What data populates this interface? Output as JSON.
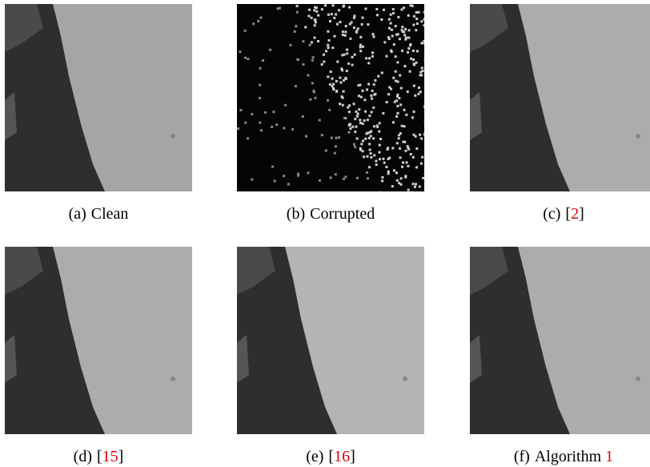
{
  "panels": [
    {
      "label": "(a)",
      "text": "Clean"
    },
    {
      "label": "(b)",
      "text": "Corrupted"
    },
    {
      "label": "(c)",
      "text": "[",
      "ref": "2",
      "suffix": "]"
    },
    {
      "label": "(d)",
      "text": "[",
      "ref": "15",
      "suffix": "]"
    },
    {
      "label": "(e)",
      "text": "[",
      "ref": "16",
      "suffix": "]"
    },
    {
      "label": "(f)",
      "text": "Algorithm",
      "ref": "1"
    }
  ]
}
